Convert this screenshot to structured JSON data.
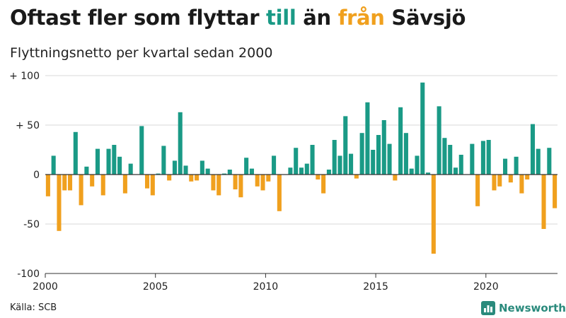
{
  "title": {
    "part1": "Oftast fler som flyttar ",
    "pos_word": "till",
    "part2": " än ",
    "neg_word": "från",
    "part3": " Sävsjö"
  },
  "subtitle": "Flyttningsnetto per kvartal sedan 2000",
  "source": "Källa: SCB",
  "brand": "Newsworthy",
  "colors": {
    "positive": "#1a9a86",
    "negative": "#f0a01e",
    "grid": "#d8d8d8",
    "axis": "#333333"
  },
  "chart_data": {
    "type": "bar",
    "title": "Oftast fler som flyttar till än från Sävsjö",
    "subtitle": "Flyttningsnetto per kvartal sedan 2000",
    "ylim": [
      -100,
      100
    ],
    "y_ticks": [
      {
        "value": 100,
        "label": "+ 100"
      },
      {
        "value": 50,
        "label": "+  50"
      },
      {
        "value": 0,
        "label": "0"
      },
      {
        "value": -50,
        "label": "-50"
      },
      {
        "value": -100,
        "label": "-100"
      }
    ],
    "x_start": "2000 Q1",
    "x_ticks": [
      {
        "index": 0,
        "label": "2000"
      },
      {
        "index": 20,
        "label": "2005"
      },
      {
        "index": 40,
        "label": "2010"
      },
      {
        "index": 60,
        "label": "2015"
      },
      {
        "index": 80,
        "label": "2020"
      }
    ],
    "values": [
      -22,
      19,
      -57,
      -16,
      -16,
      43,
      -31,
      8,
      -12,
      26,
      -21,
      26,
      30,
      18,
      -19,
      11,
      0,
      49,
      -14,
      -21,
      1,
      29,
      -6,
      14,
      63,
      9,
      -7,
      -6,
      14,
      6,
      -16,
      -21,
      1,
      5,
      -15,
      -23,
      17,
      6,
      -12,
      -16,
      -7,
      19,
      -37,
      0,
      7,
      27,
      7,
      11,
      30,
      -5,
      -19,
      5,
      35,
      19,
      59,
      21,
      -4,
      42,
      73,
      25,
      40,
      55,
      31,
      -6,
      68,
      42,
      6,
      19,
      93,
      2,
      -80,
      69,
      37,
      30,
      7,
      20,
      0,
      31,
      -32,
      34,
      35,
      -16,
      -12,
      16,
      -8,
      18,
      -19,
      -5,
      51,
      26,
      -55,
      27,
      -34
    ]
  }
}
